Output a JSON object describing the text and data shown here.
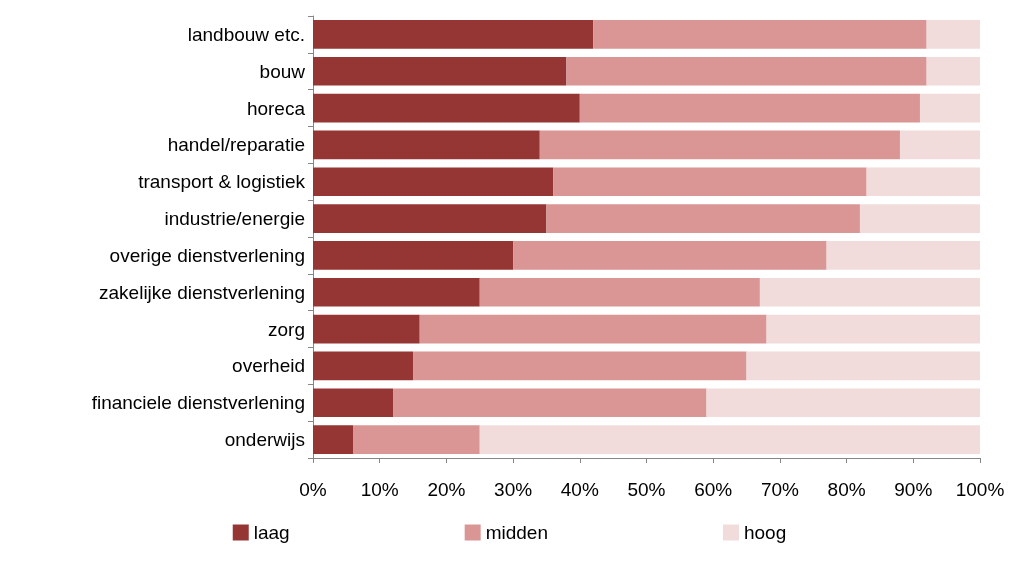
{
  "chart_data": {
    "type": "bar",
    "orientation": "horizontal",
    "stacked": true,
    "categories": [
      "landbouw etc.",
      "bouw",
      "horeca",
      "handel/reparatie",
      "transport & logistiek",
      "industrie/energie",
      "overige dienstverlening",
      "zakelijke dienstverlening",
      "zorg",
      "overheid",
      "financiele dienstverlening",
      "onderwijs"
    ],
    "series": [
      {
        "name": "laag",
        "color": "#963634",
        "values": [
          42,
          38,
          40,
          34,
          36,
          35,
          30,
          25,
          16,
          15,
          12,
          6
        ]
      },
      {
        "name": "midden",
        "color": "#d99694",
        "values": [
          50,
          54,
          51,
          54,
          47,
          47,
          47,
          42,
          52,
          50,
          47,
          19
        ]
      },
      {
        "name": "hoog",
        "color": "#f2dcdb",
        "values": [
          8,
          8,
          9,
          12,
          17,
          18,
          23,
          33,
          32,
          35,
          41,
          75
        ]
      }
    ],
    "xlim": [
      0,
      100
    ],
    "xticks": [
      {
        "value": 0,
        "label": "0%"
      },
      {
        "value": 10,
        "label": "10%"
      },
      {
        "value": 20,
        "label": "20%"
      },
      {
        "value": 30,
        "label": "30%"
      },
      {
        "value": 40,
        "label": "40%"
      },
      {
        "value": 50,
        "label": "50%"
      },
      {
        "value": 60,
        "label": "60%"
      },
      {
        "value": 70,
        "label": "70%"
      },
      {
        "value": 80,
        "label": "80%"
      },
      {
        "value": 90,
        "label": "90%"
      },
      {
        "value": 100,
        "label": "100%"
      }
    ],
    "grid": false,
    "legend": "bottom"
  }
}
